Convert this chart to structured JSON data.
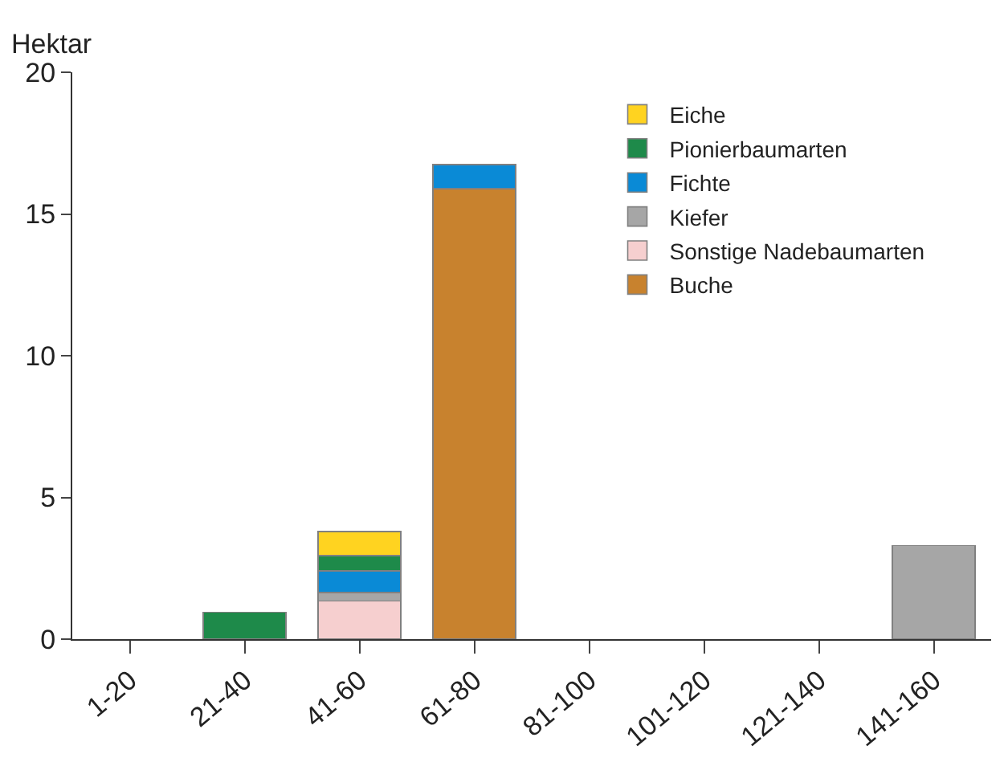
{
  "chart_data": {
    "type": "bar",
    "stacked": true,
    "ylabel": "Hektar",
    "categories": [
      "1-20",
      "21-40",
      "41-60",
      "61-80",
      "81-100",
      "101-120",
      "121-140",
      "141-160"
    ],
    "series": [
      {
        "name": "Buche",
        "color": "#c8822e",
        "values": [
          null,
          null,
          null,
          15.9,
          null,
          null,
          null,
          null
        ]
      },
      {
        "name": "Sonstige Nadebaumarten",
        "color": "#f6cfcf",
        "values": [
          null,
          null,
          1.35,
          null,
          null,
          null,
          null,
          null
        ]
      },
      {
        "name": "Kiefer",
        "color": "#a6a6a6",
        "values": [
          null,
          null,
          0.3,
          null,
          null,
          null,
          null,
          3.3
        ]
      },
      {
        "name": "Fichte",
        "color": "#0a8ad6",
        "values": [
          null,
          null,
          0.75,
          0.85,
          null,
          null,
          null,
          null
        ]
      },
      {
        "name": "Pionierbaumarten",
        "color": "#1e8a4a",
        "values": [
          null,
          0.95,
          0.55,
          null,
          null,
          null,
          null,
          null
        ]
      },
      {
        "name": "Eiche",
        "color": "#ffd320",
        "values": [
          null,
          null,
          0.85,
          null,
          null,
          null,
          null,
          null
        ]
      }
    ],
    "ylim": [
      0,
      20
    ],
    "yticks": [
      0,
      5,
      10,
      15,
      20
    ],
    "legend": "top right"
  }
}
